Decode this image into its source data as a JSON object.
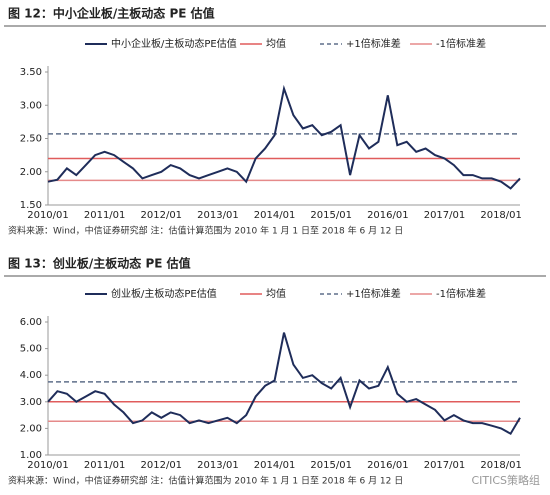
{
  "chart_data": [
    {
      "type": "line",
      "title": "图 12：中小企业板/主板动态 PE 估值",
      "x": [
        "2010/01",
        "2010/03",
        "2010/05",
        "2010/07",
        "2010/09",
        "2010/11",
        "2011/01",
        "2011/03",
        "2011/05",
        "2011/07",
        "2011/09",
        "2011/11",
        "2012/01",
        "2012/03",
        "2012/05",
        "2012/07",
        "2012/09",
        "2012/11",
        "2013/01",
        "2013/03",
        "2013/05",
        "2013/07",
        "2013/09",
        "2013/11",
        "2014/01",
        "2014/03",
        "2014/05",
        "2014/07",
        "2014/09",
        "2014/11",
        "2015/01",
        "2015/03",
        "2015/05",
        "2015/07",
        "2015/09",
        "2015/11",
        "2016/01",
        "2016/03",
        "2016/05",
        "2016/07",
        "2016/09",
        "2016/11",
        "2017/01",
        "2017/03",
        "2017/05",
        "2017/07",
        "2017/09",
        "2017/11",
        "2018/01",
        "2018/03",
        "2018/05"
      ],
      "xticks": [
        "2010/01",
        "2011/01",
        "2012/01",
        "2013/01",
        "2014/01",
        "2015/01",
        "2016/01",
        "2017/01",
        "2018/01"
      ],
      "series": [
        {
          "name": "中小企业板/主板动态PE估值",
          "color": "#1f2d5a",
          "values": [
            1.85,
            1.88,
            2.05,
            1.95,
            2.1,
            2.25,
            2.3,
            2.25,
            2.15,
            2.05,
            1.9,
            1.95,
            2.0,
            2.1,
            2.05,
            1.95,
            1.9,
            1.95,
            2.0,
            2.05,
            2.0,
            1.85,
            2.2,
            2.35,
            2.55,
            3.25,
            2.85,
            2.65,
            2.7,
            2.55,
            2.6,
            2.7,
            1.95,
            2.55,
            2.35,
            2.45,
            3.15,
            2.4,
            2.45,
            2.3,
            2.35,
            2.25,
            2.2,
            2.1,
            1.95,
            1.95,
            1.9,
            1.9,
            1.85,
            1.75,
            1.9
          ]
        }
      ],
      "reference_lines": [
        {
          "name": "均值",
          "value": 2.2,
          "color": "#e05c5c",
          "style": "solid"
        },
        {
          "name": "+1倍标准差",
          "value": 2.57,
          "color": "#5f6f8a",
          "style": "dashed"
        },
        {
          "name": "-1倍标准差",
          "value": 1.87,
          "color": "#e58a8a",
          "style": "solid"
        }
      ],
      "ylim": [
        1.5,
        3.5
      ],
      "yticks": [
        {
          "value": 1.5,
          "label": "1.50"
        },
        {
          "value": 2.0,
          "label": "2.00"
        },
        {
          "value": 2.5,
          "label": "2.50"
        },
        {
          "value": 3.0,
          "label": "3.00"
        },
        {
          "value": 3.5,
          "label": "3.50"
        }
      ],
      "note": "资料来源：Wind，中信证券研究部    注：估值计算范围为 2010 年 1 月 1 日至 2018 年 6 月 12 日"
    },
    {
      "type": "line",
      "title": "图 13：创业板/主板动态 PE 估值",
      "x": [
        "2010/01",
        "2010/03",
        "2010/05",
        "2010/07",
        "2010/09",
        "2010/11",
        "2011/01",
        "2011/03",
        "2011/05",
        "2011/07",
        "2011/09",
        "2011/11",
        "2012/01",
        "2012/03",
        "2012/05",
        "2012/07",
        "2012/09",
        "2012/11",
        "2013/01",
        "2013/03",
        "2013/05",
        "2013/07",
        "2013/09",
        "2013/11",
        "2014/01",
        "2014/03",
        "2014/05",
        "2014/07",
        "2014/09",
        "2014/11",
        "2015/01",
        "2015/03",
        "2015/05",
        "2015/07",
        "2015/09",
        "2015/11",
        "2016/01",
        "2016/03",
        "2016/05",
        "2016/07",
        "2016/09",
        "2016/11",
        "2017/01",
        "2017/03",
        "2017/05",
        "2017/07",
        "2017/09",
        "2017/11",
        "2018/01",
        "2018/03",
        "2018/05"
      ],
      "xticks": [
        "2010/01",
        "2011/01",
        "2012/01",
        "2013/01",
        "2014/01",
        "2015/01",
        "2016/01",
        "2017/01",
        "2018/01"
      ],
      "series": [
        {
          "name": "创业板/主板动态PE估值",
          "color": "#1f2d5a",
          "values": [
            3.0,
            3.4,
            3.3,
            3.0,
            3.2,
            3.4,
            3.3,
            2.9,
            2.6,
            2.2,
            2.3,
            2.6,
            2.4,
            2.6,
            2.5,
            2.2,
            2.3,
            2.2,
            2.3,
            2.4,
            2.2,
            2.5,
            3.2,
            3.6,
            3.8,
            5.6,
            4.4,
            3.9,
            4.0,
            3.7,
            3.5,
            3.9,
            2.8,
            3.8,
            3.5,
            3.6,
            4.3,
            3.3,
            3.0,
            3.1,
            2.9,
            2.7,
            2.3,
            2.5,
            2.3,
            2.2,
            2.2,
            2.1,
            2.0,
            1.8,
            2.4
          ]
        }
      ],
      "reference_lines": [
        {
          "name": "均值",
          "value": 3.0,
          "color": "#e05c5c",
          "style": "solid"
        },
        {
          "name": "+1倍标准差",
          "value": 3.75,
          "color": "#5f6f8a",
          "style": "dashed"
        },
        {
          "name": "-1倍标准差",
          "value": 2.27,
          "color": "#e58a8a",
          "style": "solid"
        }
      ],
      "ylim": [
        1.0,
        6.0
      ],
      "yticks": [
        {
          "value": 1.0,
          "label": "1.00"
        },
        {
          "value": 2.0,
          "label": "2.00"
        },
        {
          "value": 3.0,
          "label": "3.00"
        },
        {
          "value": 4.0,
          "label": "4.00"
        },
        {
          "value": 5.0,
          "label": "5.00"
        },
        {
          "value": 6.0,
          "label": "6.00"
        }
      ],
      "note": "资料来源：Wind，中信证券研究部    注：估值计算范围为 2010 年 1 月 1 日至 2018 年 6 月 12 日",
      "watermark": "CITICS策略组"
    }
  ]
}
